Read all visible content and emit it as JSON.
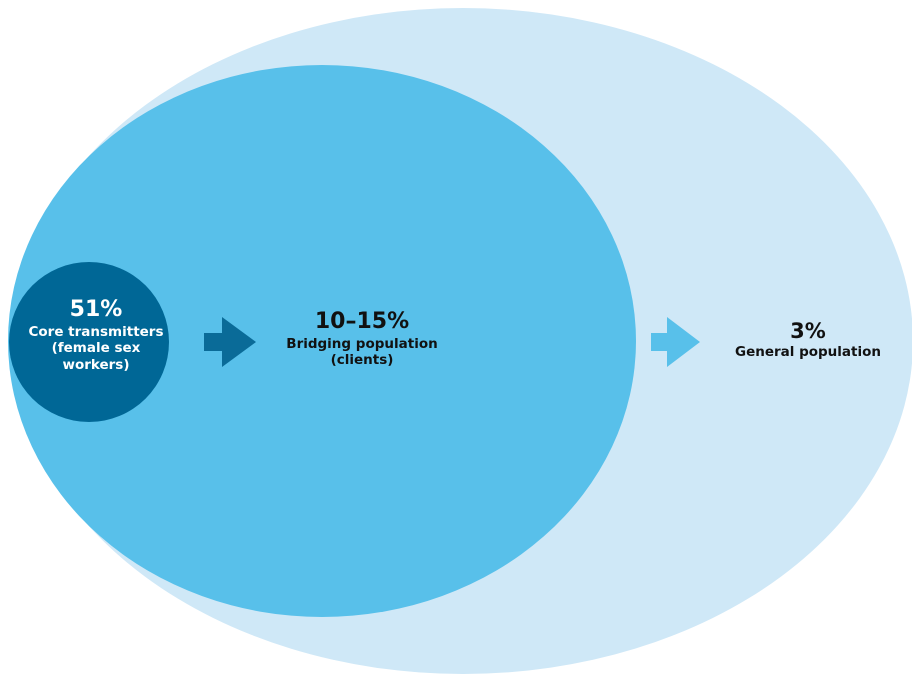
{
  "colors": {
    "general": "#cfe8f7",
    "bridging": "#58c0ea",
    "core": "#006796",
    "arrow_dark": "#0a6b98",
    "arrow_light": "#58c0ea"
  },
  "groups": {
    "core": {
      "percent": "51%",
      "lines": [
        "Core transmitters",
        "(female sex",
        "workers)"
      ]
    },
    "bridging": {
      "percent": "10–15%",
      "lines": [
        "Bridging population",
        "(clients)"
      ]
    },
    "general": {
      "percent": "3%",
      "lines": [
        "General population"
      ]
    }
  }
}
